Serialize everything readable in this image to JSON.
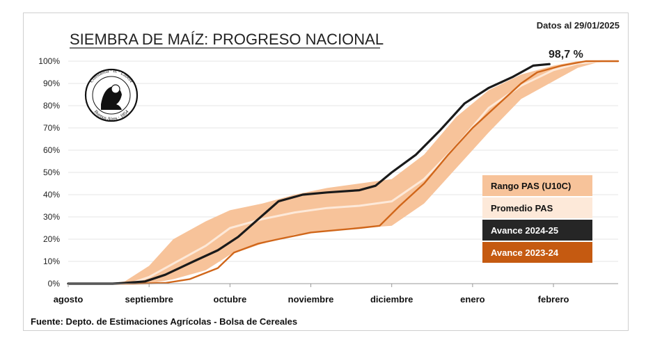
{
  "header": {
    "title": "SIEMBRA DE MAÍZ: PROGRESO NACIONAL",
    "date_note": "Datos al 29/01/2025",
    "final_value_label": "98,7 %"
  },
  "footer": {
    "source": "Fuente: Depto. de Estimaciones Agrícolas - Bolsa de Cereales"
  },
  "seal": {
    "text_top": "Constantia · et · Labore",
    "text_bottom": "Buenos Aires · 1854"
  },
  "colors": {
    "range": "#f7c39a",
    "average": "#fde9d9",
    "current": "#1a1a1a",
    "previous": "#d0661a",
    "grid": "#e4e4e4",
    "plot_bg": "#ffffff"
  },
  "chart_data": {
    "type": "area",
    "title": "SIEMBRA DE MAÍZ: PROGRESO NACIONAL",
    "xlabel": "",
    "ylabel": "",
    "x_tick_labels": [
      "agosto",
      "septiembre",
      "octubre",
      "noviembre",
      "diciembre",
      "enero",
      "febrero"
    ],
    "y_tick_labels": [
      "0%",
      "10%",
      "20%",
      "30%",
      "40%",
      "50%",
      "60%",
      "70%",
      "80%",
      "90%",
      "100%"
    ],
    "ylim": [
      0,
      100
    ],
    "x_unit": "months since start of August",
    "xlim": [
      0,
      6.8
    ],
    "grid": true,
    "legend_position": "right-bottom",
    "range": {
      "name": "Rango PAS (U10C)",
      "x": [
        0,
        0.5,
        0.7,
        1.0,
        1.3,
        1.7,
        2.0,
        2.4,
        2.8,
        3.2,
        3.6,
        4.0,
        4.4,
        4.8,
        5.2,
        5.6,
        6.0,
        6.3,
        6.6,
        6.8
      ],
      "upper": [
        0,
        0,
        1,
        8,
        20,
        28,
        33,
        36,
        40,
        43,
        45,
        47,
        58,
        75,
        87,
        94,
        98,
        100,
        100,
        100
      ],
      "lower": [
        0,
        0,
        0,
        0,
        2,
        6,
        13,
        18,
        22,
        24,
        25,
        26,
        36,
        52,
        68,
        83,
        91,
        97,
        100,
        100
      ]
    },
    "series": [
      {
        "name": "Promedio PAS",
        "x": [
          0,
          0.6,
          0.8,
          1.0,
          1.3,
          1.7,
          2.0,
          2.4,
          2.8,
          3.2,
          3.6,
          4.0,
          4.4,
          4.8,
          5.2,
          5.6,
          6.0,
          6.3,
          6.6,
          6.8
        ],
        "values": [
          0,
          0,
          0.5,
          3,
          9,
          17,
          25,
          29,
          32,
          34,
          35,
          37,
          47,
          62,
          79,
          89,
          96,
          99,
          100,
          100
        ]
      },
      {
        "name": "Avance 2024-25",
        "x": [
          0,
          0.55,
          0.7,
          0.95,
          1.2,
          1.55,
          1.85,
          2.1,
          2.6,
          2.9,
          3.2,
          3.6,
          3.8,
          4.0,
          4.3,
          4.6,
          4.9,
          5.2,
          5.5,
          5.75,
          5.95
        ],
        "values": [
          0,
          0,
          0.3,
          1,
          4,
          10,
          15,
          21,
          37,
          40,
          41,
          42,
          44,
          50,
          58,
          69,
          81,
          88,
          93,
          98,
          98.7
        ]
      },
      {
        "name": "Avance 2023-24",
        "x": [
          0,
          0.8,
          1.2,
          1.5,
          1.85,
          2.05,
          2.35,
          2.6,
          3.0,
          3.3,
          3.6,
          3.85,
          4.1,
          4.4,
          4.7,
          5.0,
          5.3,
          5.6,
          5.8,
          6.1,
          6.4,
          6.7,
          6.8
        ],
        "values": [
          0,
          0,
          0.3,
          2,
          7,
          14,
          18,
          20,
          23,
          24,
          25,
          26,
          35,
          45,
          58,
          70,
          80,
          90,
          95,
          98,
          100,
          100,
          100
        ]
      }
    ],
    "legend": [
      {
        "label": "Rango PAS (U10C)",
        "bg": "#f7c39a",
        "fg": "#111111"
      },
      {
        "label": "Promedio PAS",
        "bg": "#fde9d9",
        "fg": "#111111"
      },
      {
        "label": "Avance 2024-25",
        "bg": "#262626",
        "fg": "#ffffff"
      },
      {
        "label": "Avance 2023-24",
        "bg": "#c55a11",
        "fg": "#ffffff"
      }
    ]
  }
}
